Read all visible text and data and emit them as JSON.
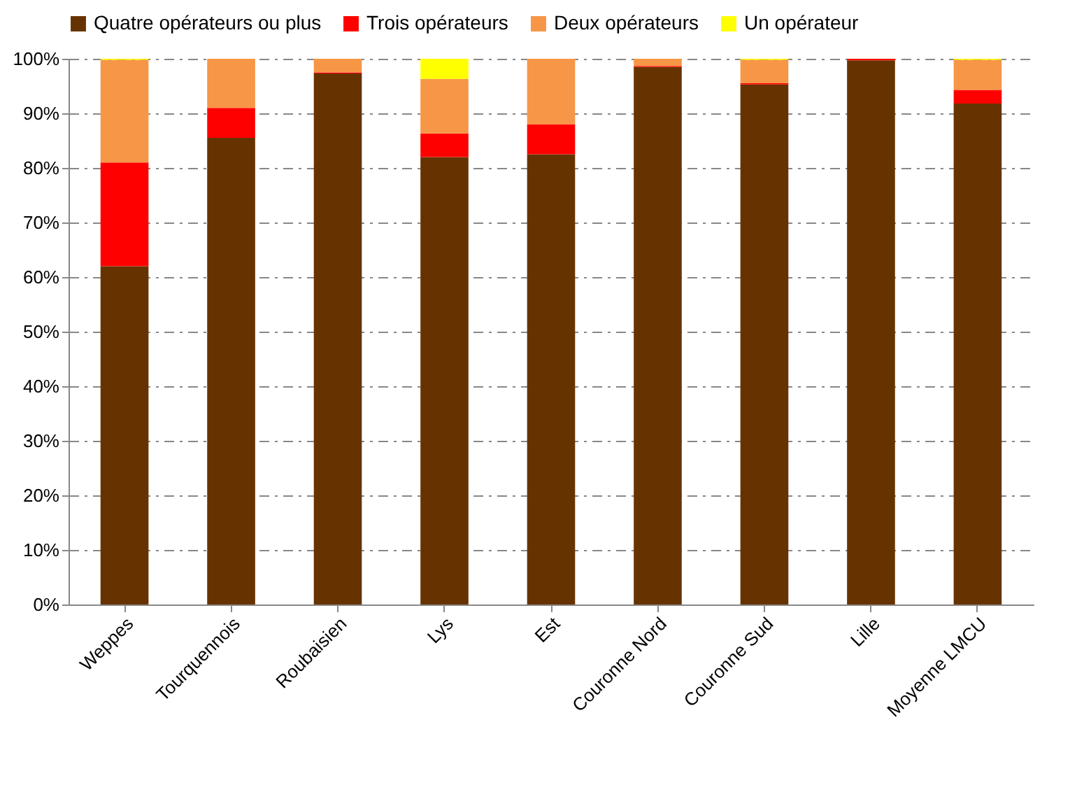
{
  "chart_data": {
    "type": "bar",
    "stacked": true,
    "categories": [
      "Weppes",
      "Tourquennois",
      "Roubaisien",
      "Lys",
      "Est",
      "Couronne Nord",
      "Couronne Sud",
      "Lille",
      "Moyenne LMCU"
    ],
    "series": [
      {
        "name": "Quatre opérateurs ou plus",
        "color": "#663300",
        "values": [
          62,
          85.5,
          97.3,
          82,
          82.5,
          98.5,
          95.3,
          99.7,
          91.8
        ]
      },
      {
        "name": "Trois opérateurs",
        "color": "#ff0000",
        "values": [
          19,
          5.5,
          0.2,
          4.3,
          5.5,
          0.2,
          0.2,
          0.3,
          2.5
        ]
      },
      {
        "name": "Deux opérateurs",
        "color": "#f79646",
        "values": [
          18.8,
          9,
          2.5,
          10,
          12,
          1.3,
          4.3,
          0,
          5.5
        ]
      },
      {
        "name": "Un opérateur",
        "color": "#ffff00",
        "values": [
          0.2,
          0,
          0,
          3.7,
          0,
          0,
          0.2,
          0,
          0.2
        ]
      }
    ],
    "ylim": [
      0,
      100
    ],
    "yticks": [
      {
        "value": 0,
        "label": "0%"
      },
      {
        "value": 10,
        "label": "10%"
      },
      {
        "value": 20,
        "label": "20%"
      },
      {
        "value": 30,
        "label": "30%"
      },
      {
        "value": 40,
        "label": "40%"
      },
      {
        "value": 50,
        "label": "50%"
      },
      {
        "value": 60,
        "label": "60%"
      },
      {
        "value": 70,
        "label": "70%"
      },
      {
        "value": 80,
        "label": "80%"
      },
      {
        "value": 90,
        "label": "90%"
      },
      {
        "value": 100,
        "label": "100%"
      }
    ],
    "grid": "y",
    "legend": "top"
  }
}
